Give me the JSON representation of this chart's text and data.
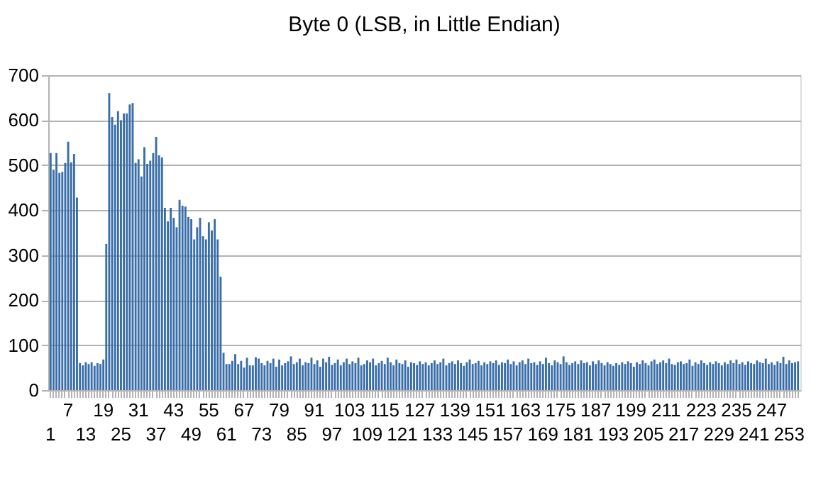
{
  "chart_data": {
    "type": "bar",
    "title": "Byte 0 (LSB, in Little Endian)",
    "categories": [
      "1",
      null,
      null,
      null,
      null,
      null,
      "7",
      null,
      null,
      null,
      null,
      null,
      "13",
      null,
      null,
      null,
      null,
      null,
      "19",
      null,
      null,
      null,
      null,
      null,
      "25",
      null,
      null,
      null,
      null,
      null,
      "31",
      null,
      null,
      null,
      null,
      null,
      "37",
      null,
      null,
      null,
      null,
      null,
      "43",
      null,
      null,
      null,
      null,
      null,
      "49",
      null,
      null,
      null,
      null,
      null,
      "55",
      null,
      null,
      null,
      null,
      null,
      "61",
      null,
      null,
      null,
      null,
      null,
      "67",
      null,
      null,
      null,
      null,
      null,
      "73",
      null,
      null,
      null,
      null,
      null,
      "79",
      null,
      null,
      null,
      null,
      null,
      "85",
      null,
      null,
      null,
      null,
      null,
      "91",
      null,
      null,
      null,
      null,
      null,
      "97",
      null,
      null,
      null,
      null,
      null,
      "103",
      null,
      null,
      null,
      null,
      null,
      "109",
      null,
      null,
      null,
      null,
      null,
      "115",
      null,
      null,
      null,
      null,
      null,
      "121",
      null,
      null,
      null,
      null,
      null,
      "127",
      null,
      null,
      null,
      null,
      null,
      "133",
      null,
      null,
      null,
      null,
      null,
      "139",
      null,
      null,
      null,
      null,
      null,
      "145",
      null,
      null,
      null,
      null,
      null,
      "151",
      null,
      null,
      null,
      null,
      null,
      "157",
      null,
      null,
      null,
      null,
      null,
      "163",
      null,
      null,
      null,
      null,
      null,
      "169",
      null,
      null,
      null,
      null,
      null,
      "175",
      null,
      null,
      null,
      null,
      null,
      "181",
      null,
      null,
      null,
      null,
      null,
      "187",
      null,
      null,
      null,
      null,
      null,
      "193",
      null,
      null,
      null,
      null,
      null,
      "199",
      null,
      null,
      null,
      null,
      null,
      "205",
      null,
      null,
      null,
      null,
      null,
      "211",
      null,
      null,
      null,
      null,
      null,
      "217",
      null,
      null,
      null,
      null,
      null,
      "223",
      null,
      null,
      null,
      null,
      null,
      "229",
      null,
      null,
      null,
      null,
      null,
      "235",
      null,
      null,
      null,
      null,
      null,
      "241",
      null,
      null,
      null,
      null,
      null,
      "247",
      null,
      null,
      null,
      null,
      null,
      "253",
      null,
      null,
      null
    ],
    "values": [
      527,
      490,
      527,
      483,
      485,
      505,
      552,
      506,
      525,
      428,
      60,
      55,
      62,
      58,
      62,
      54,
      60,
      58,
      68,
      325,
      660,
      607,
      590,
      620,
      600,
      615,
      615,
      635,
      638,
      505,
      513,
      475,
      540,
      503,
      510,
      527,
      563,
      522,
      517,
      405,
      375,
      405,
      383,
      362,
      423,
      410,
      408,
      385,
      380,
      335,
      362,
      383,
      342,
      335,
      373,
      355,
      380,
      335,
      252,
      83,
      58,
      58,
      65,
      80,
      58,
      65,
      50,
      72,
      55,
      55,
      73,
      70,
      60,
      55,
      65,
      60,
      70,
      52,
      68,
      55,
      60,
      64,
      75,
      58,
      62,
      70,
      55,
      62,
      60,
      72,
      58,
      66,
      52,
      70,
      62,
      74,
      56,
      60,
      68,
      55,
      62,
      70,
      58,
      64,
      60,
      72,
      55,
      58,
      66,
      62,
      70,
      55,
      60,
      65,
      58,
      72,
      62,
      55,
      68,
      60,
      58,
      66,
      52,
      62,
      60,
      56,
      64,
      58,
      62,
      55,
      60,
      66,
      58,
      62,
      70,
      55,
      60,
      64,
      58,
      66,
      60,
      54,
      62,
      68,
      58,
      60,
      65,
      55,
      62,
      58,
      64,
      60,
      66,
      56,
      62,
      60,
      68,
      58,
      64,
      55,
      62,
      66,
      58,
      70,
      60,
      62,
      56,
      64,
      58,
      72,
      60,
      55,
      66,
      62,
      58,
      75,
      62,
      56,
      60,
      64,
      58,
      66,
      60,
      62,
      55,
      64,
      58,
      66,
      60,
      55,
      62,
      58,
      54,
      60,
      56,
      62,
      58,
      64,
      60,
      52,
      62,
      58,
      66,
      60,
      55,
      64,
      68,
      58,
      62,
      66,
      60,
      70,
      58,
      56,
      62,
      64,
      58,
      60,
      68,
      54,
      62,
      58,
      66,
      60,
      56,
      62,
      58,
      64,
      60,
      55,
      62,
      58,
      66,
      60,
      68,
      58,
      62,
      56,
      64,
      60,
      58,
      66,
      62,
      60,
      70,
      58,
      62,
      56,
      64,
      60,
      74,
      58,
      66,
      60,
      62,
      64
    ],
    "color": "#3a6ea8",
    "ylim": [
      0,
      700
    ],
    "yticks": [
      0,
      100,
      200,
      300,
      400,
      500,
      600,
      700
    ],
    "grid": "y"
  }
}
